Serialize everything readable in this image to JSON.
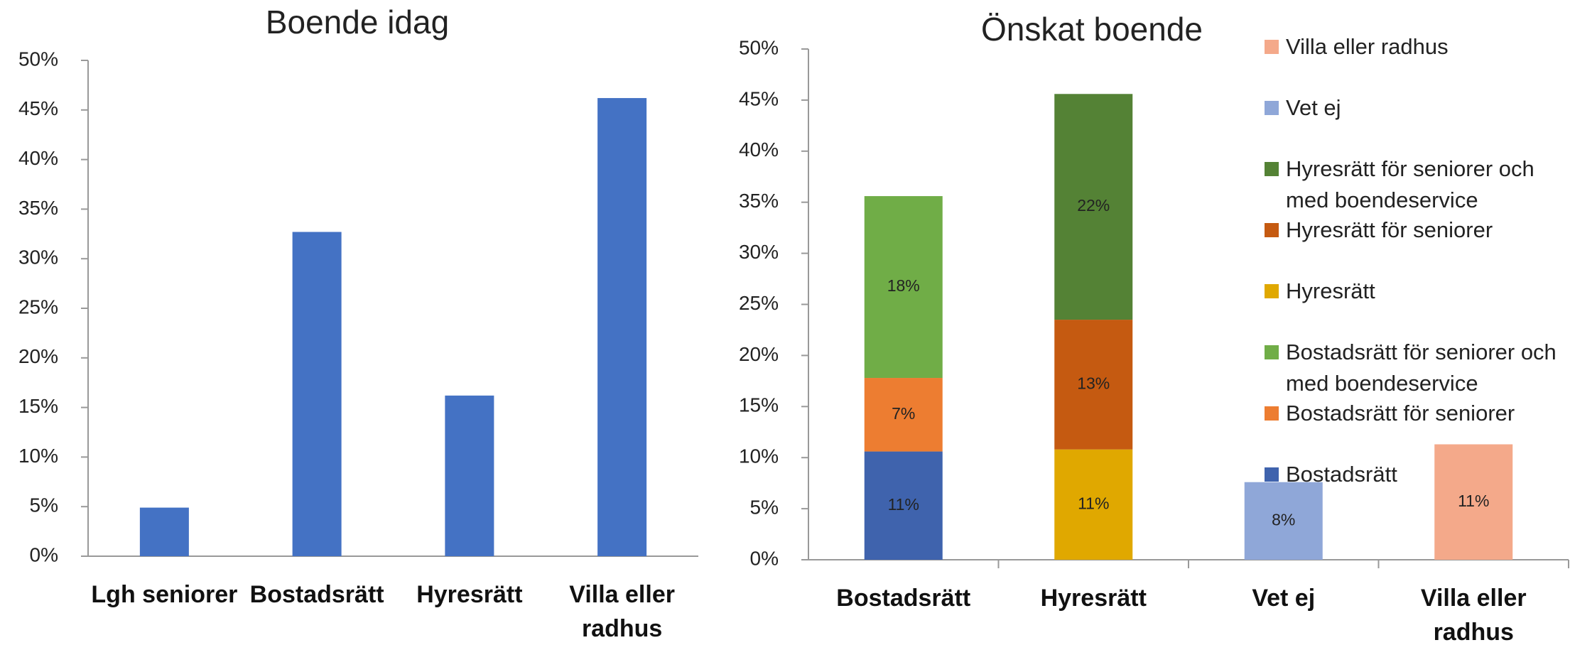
{
  "chart_data": [
    {
      "type": "bar",
      "title": "Boende idag",
      "categories": [
        "Lgh seniorer",
        "Bostadsrätt",
        "Hyresrätt",
        "Villa eller radhus"
      ],
      "values": [
        4.9,
        32.7,
        16.2,
        46.2
      ],
      "color": "#4472c4",
      "ylim": [
        0,
        50
      ],
      "yticks": [
        {
          "value": 0,
          "label": "0%"
        },
        {
          "value": 5,
          "label": "5%"
        },
        {
          "value": 10,
          "label": "10%"
        },
        {
          "value": 15,
          "label": "15%"
        },
        {
          "value": 20,
          "label": "20%"
        },
        {
          "value": 25,
          "label": "25%"
        },
        {
          "value": 30,
          "label": "30%"
        },
        {
          "value": 35,
          "label": "35%"
        },
        {
          "value": 40,
          "label": "40%"
        },
        {
          "value": 45,
          "label": "45%"
        },
        {
          "value": 50,
          "label": "50%"
        }
      ],
      "grid": false
    },
    {
      "type": "stacked-bar",
      "title": "Önskat boende",
      "categories": [
        "Bostadsrätt",
        "Hyresrätt",
        "Vet ej",
        "Villa eller radhus"
      ],
      "series": [
        {
          "name": "Bostadsrätt",
          "color": "#3f63ad",
          "values": [
            10.6,
            null,
            null,
            null
          ],
          "value_labels": [
            "11%",
            null,
            null,
            null
          ]
        },
        {
          "name": "Bostadsrätt för seniorer",
          "color": "#ed7d31",
          "values": [
            7.2,
            null,
            null,
            null
          ],
          "value_labels": [
            "7%",
            null,
            null,
            null
          ]
        },
        {
          "name": "Bostadsrätt för seniorer och med boendeservice",
          "color": "#70ad47",
          "values": [
            17.8,
            null,
            null,
            null
          ],
          "value_labels": [
            "18%",
            null,
            null,
            null
          ]
        },
        {
          "name": "Hyresrätt",
          "color": "#e0a800",
          "values": [
            null,
            10.8,
            null,
            null
          ],
          "value_labels": [
            null,
            "11%",
            null,
            null
          ]
        },
        {
          "name": "Hyresrätt för seniorer",
          "color": "#c55a11",
          "values": [
            null,
            12.7,
            null,
            null
          ],
          "value_labels": [
            null,
            "13%",
            null,
            null
          ]
        },
        {
          "name": "Hyresrätt för seniorer och med boendeservice",
          "color": "#548235",
          "values": [
            null,
            22.1,
            null,
            null
          ],
          "value_labels": [
            null,
            "22%",
            null,
            null
          ]
        },
        {
          "name": "Vet ej",
          "color": "#8fa7d8",
          "values": [
            null,
            null,
            7.6,
            null
          ],
          "value_labels": [
            null,
            null,
            "8%",
            null
          ]
        },
        {
          "name": "Villa eller radhus",
          "color": "#f4a98a",
          "values": [
            null,
            null,
            null,
            11.3
          ],
          "value_labels": [
            null,
            null,
            null,
            "11%"
          ]
        }
      ],
      "ylim": [
        0,
        50
      ],
      "yticks": [
        {
          "value": 0,
          "label": "0%"
        },
        {
          "value": 5,
          "label": "5%"
        },
        {
          "value": 10,
          "label": "10%"
        },
        {
          "value": 15,
          "label": "15%"
        },
        {
          "value": 20,
          "label": "20%"
        },
        {
          "value": 25,
          "label": "25%"
        },
        {
          "value": 30,
          "label": "30%"
        },
        {
          "value": 35,
          "label": "35%"
        },
        {
          "value": 40,
          "label": "40%"
        },
        {
          "value": 45,
          "label": "45%"
        },
        {
          "value": 50,
          "label": "50%"
        }
      ],
      "legend": "right",
      "grid": false
    }
  ]
}
